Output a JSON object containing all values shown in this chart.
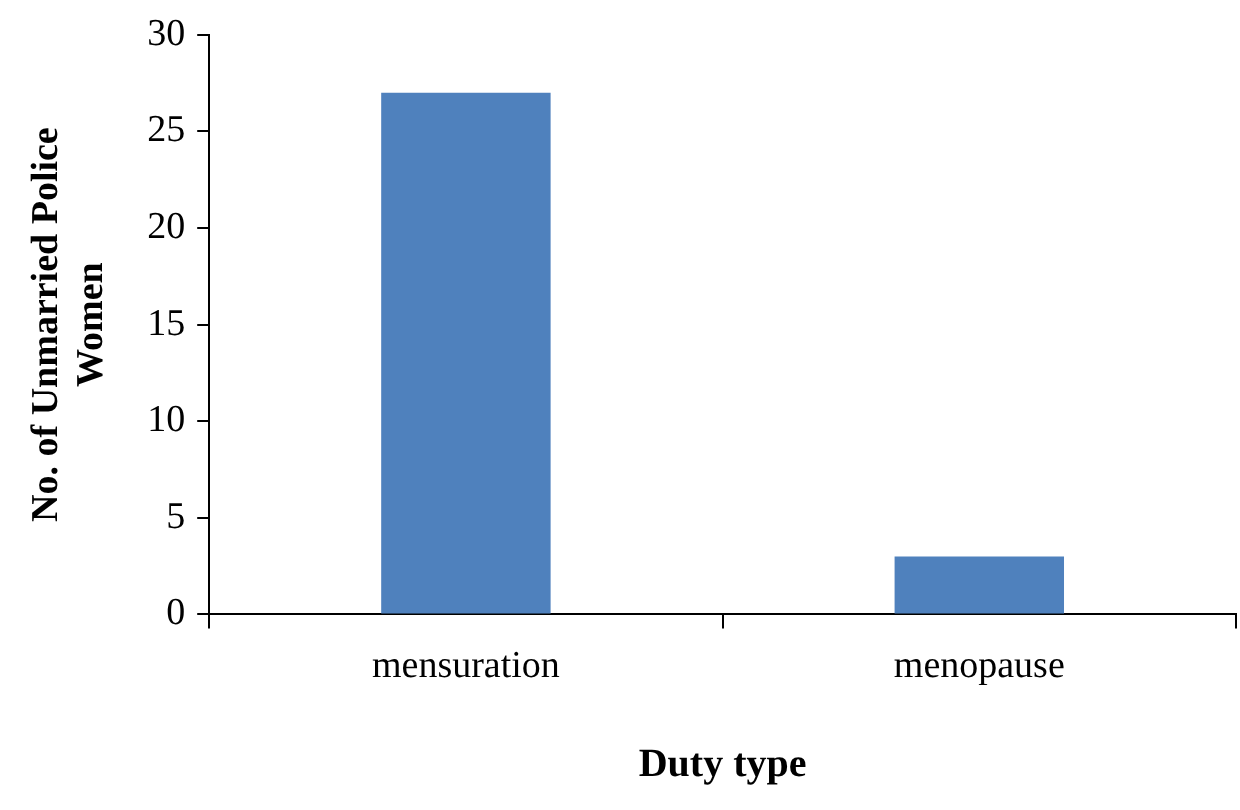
{
  "chart_data": {
    "type": "bar",
    "xlabel": "Duty type",
    "ylabel": "No. of Unmarried Police Women",
    "categories": [
      "mensuration",
      "menopause"
    ],
    "values": [
      27,
      3
    ],
    "color": "#4f81bd",
    "ylim": [
      0,
      30
    ],
    "yticks": [
      0,
      5,
      10,
      15,
      20,
      25,
      30
    ],
    "grid": false
  }
}
